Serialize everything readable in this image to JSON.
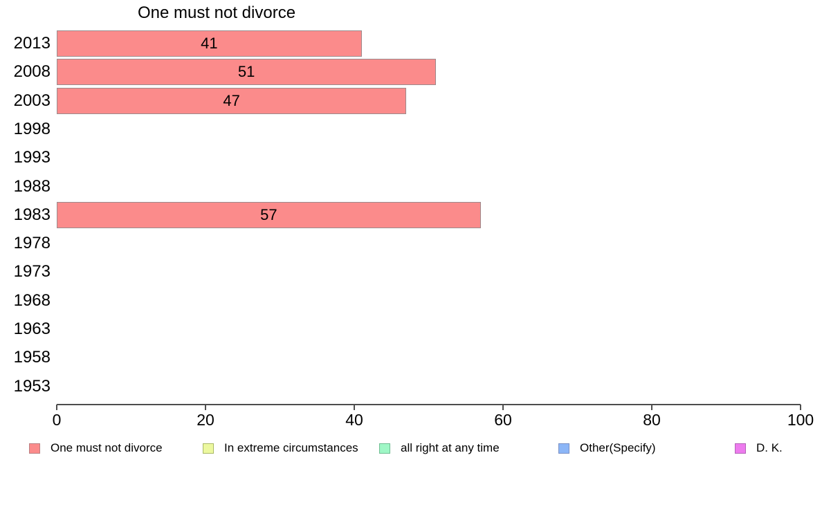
{
  "chart_data": {
    "type": "bar",
    "orientation": "horizontal",
    "title": "One must not divorce",
    "series_name": "One must not divorce",
    "categories": [
      "2013",
      "2008",
      "2003",
      "1998",
      "1993",
      "1988",
      "1983",
      "1978",
      "1973",
      "1968",
      "1963",
      "1958",
      "1953"
    ],
    "values": [
      41,
      51,
      47,
      null,
      null,
      null,
      57,
      null,
      null,
      null,
      null,
      null,
      null
    ],
    "xlabel": "",
    "ylabel": "",
    "xlim": [
      0,
      100
    ],
    "x_ticks": [
      "0",
      "20",
      "40",
      "60",
      "80",
      "100"
    ],
    "grid": false,
    "bar_color": "#fb8b8b",
    "bar_border_color": "#9b8a8c",
    "value_label_color": "#000000",
    "axis_color": "#4d4d4d",
    "legend": {
      "position": "bottom",
      "entries": [
        {
          "label": "One must not divorce",
          "color": "#fb8b8b",
          "border": "#b97f82"
        },
        {
          "label": "In extreme circumstances",
          "color": "#ecf89f",
          "border": "#a9b866"
        },
        {
          "label": "all right at any time",
          "color": "#9ff7c6",
          "border": "#6fbd92"
        },
        {
          "label": "Other(Specify)",
          "color": "#8cb6f7",
          "border": "#7a90c4"
        },
        {
          "label": "D. K.",
          "color": "#ed7bee",
          "border": "#b263b7"
        }
      ]
    }
  }
}
